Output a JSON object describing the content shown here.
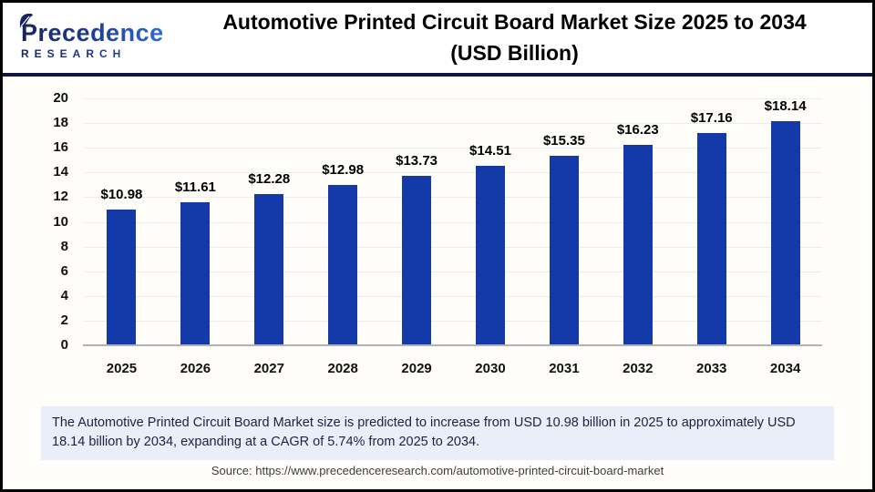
{
  "brand": {
    "name_line1": "Precedence",
    "name_line2": "RESEARCH"
  },
  "header": {
    "title_line1": "Automotive Printed Circuit Board Market Size 2025 to 2034",
    "title_line2": "(USD Billion)"
  },
  "chart_data": {
    "type": "bar",
    "title": "Automotive Printed Circuit Board Market Size 2025 to 2034 (USD Billion)",
    "categories": [
      "2025",
      "2026",
      "2027",
      "2028",
      "2029",
      "2030",
      "2031",
      "2032",
      "2033",
      "2034"
    ],
    "values": [
      10.98,
      11.61,
      12.28,
      12.98,
      13.73,
      14.51,
      15.35,
      16.23,
      17.16,
      18.14
    ],
    "labels": [
      "$10.98",
      "$11.61",
      "$12.28",
      "$12.98",
      "$13.73",
      "$14.51",
      "$15.35",
      "$16.23",
      "$17.16",
      "$18.14"
    ],
    "xlabel": "",
    "ylabel": "",
    "ylim": [
      0,
      20
    ],
    "ytick_step": 2,
    "grid": true,
    "legend": "none",
    "bar_color": "#1439a8"
  },
  "summary": {
    "text": "The Automotive Printed Circuit Board Market size is predicted to increase from USD 10.98 billion in 2025 to approximately USD 18.14 billion by 2034, expanding at a CAGR of 5.74% from 2025 to 2034."
  },
  "source": {
    "text": "Source: https://www.precedenceresearch.com/automotive-printed-circuit-board-market"
  },
  "colors": {
    "bar": "#1439a8",
    "header_rule": "#10173f",
    "summary_bg": "#e9eef8",
    "brand_navy": "#17255c",
    "brand_blue": "#2e6bd4"
  }
}
